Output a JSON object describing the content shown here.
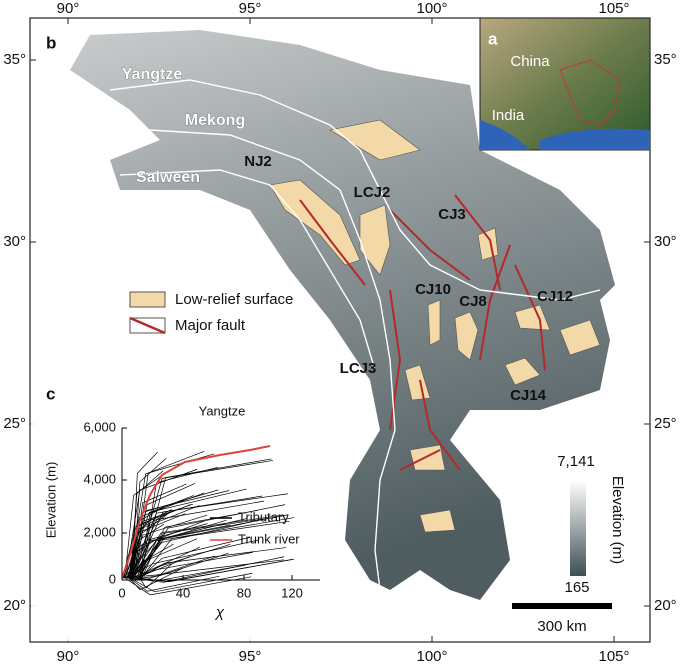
{
  "map": {
    "lon_ticks": [
      "90°",
      "95°",
      "100°",
      "105°"
    ],
    "lat_ticks": [
      "35°",
      "30°",
      "25°",
      "20°"
    ],
    "panel_b": "b",
    "rivers": [
      "Yangtze",
      "Mekong",
      "Salween"
    ],
    "sites": [
      "NJ2",
      "LCJ2",
      "CJ3",
      "CJ10",
      "CJ8",
      "CJ12",
      "LCJ3",
      "CJ14"
    ],
    "legend": [
      "Low-relief surface",
      "Major fault"
    ],
    "colorbar": {
      "max": "7,141",
      "min": "165",
      "label": "Elevation (m)"
    },
    "scale_bar": "300 km"
  },
  "inset_a": {
    "panel": "a",
    "labels": [
      "China",
      "India"
    ]
  },
  "inset_c": {
    "panel": "c",
    "title": "Yangtze",
    "y_label": "Elevation (m)",
    "x_label": "χ",
    "yticks": [
      "0",
      "2,000",
      "4,000",
      "6,000"
    ],
    "xticks": [
      "0",
      "40",
      "80",
      "120"
    ],
    "legend": [
      "Tributary",
      "Trunk river"
    ]
  }
}
